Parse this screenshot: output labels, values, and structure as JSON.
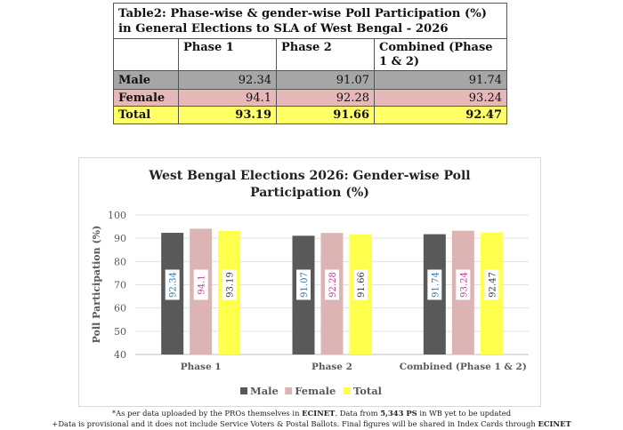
{
  "table": {
    "title": "Table2: Phase-wise & gender-wise Poll Participation (%) in General Elections to SLA of West Bengal - 2026",
    "headers": [
      "",
      "Phase 1",
      "Phase 2",
      "Combined (Phase 1 & 2)"
    ],
    "rows": [
      {
        "label": "Male",
        "values": [
          "92.34",
          "91.07",
          "91.74"
        ]
      },
      {
        "label": "Female",
        "values": [
          "94.1",
          "92.28",
          "93.24"
        ]
      },
      {
        "label": "Total",
        "values": [
          "93.19",
          "91.66",
          "92.47"
        ]
      }
    ]
  },
  "chart_data": {
    "type": "bar",
    "title": "West Bengal Elections 2026: Gender-wise Poll Participation (%)",
    "xlabel": "",
    "ylabel": "Poll Participation (%)",
    "ylim": [
      40,
      100
    ],
    "yticks": [
      "40",
      "50",
      "60",
      "70",
      "80",
      "90",
      "100"
    ],
    "grid": true,
    "legend_position": "bottom",
    "categories": [
      "Phase 1",
      "Phase 2",
      "Combined (Phase 1 & 2)"
    ],
    "series": [
      {
        "name": "Male",
        "values": [
          92.34,
          91.07,
          91.74
        ],
        "labels": [
          "92.34",
          "91.07",
          "91.74"
        ],
        "color": "#595959",
        "label_color": "#2e75b6"
      },
      {
        "name": "Female",
        "values": [
          94.1,
          92.28,
          93.24
        ],
        "labels": [
          "94.1",
          "92.28",
          "93.24"
        ],
        "color": "#ddb4b4",
        "label_color": "#c0399a"
      },
      {
        "name": "Total",
        "values": [
          93.19,
          91.66,
          92.47
        ],
        "labels": [
          "93.19",
          "91.66",
          "92.47"
        ],
        "color": "#ffff4d",
        "label_color": "#333333"
      }
    ]
  },
  "footnotes": {
    "line1_a": "*As per data uploaded by the PROs themselves in ",
    "line1_b": "ECINET",
    "line1_c": ". Data from ",
    "line1_d": "5,343 PS",
    "line1_e": " in WB yet to be updated",
    "line2_a": "+Data is provisional and it does not include Service Voters & Postal Ballots. Final figures will be shared in Index Cards through ",
    "line2_b": "ECINET"
  }
}
